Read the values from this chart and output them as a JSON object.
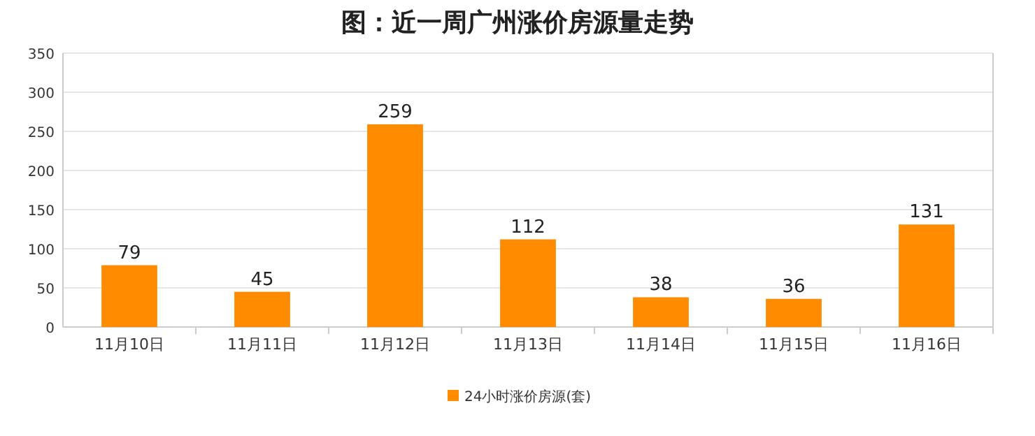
{
  "chart_data": {
    "type": "bar",
    "title": "图：近一周广州涨价房源量走势",
    "categories": [
      "11月10日",
      "11月11日",
      "11月12日",
      "11月13日",
      "11月14日",
      "11月15日",
      "11月16日"
    ],
    "series": [
      {
        "name": "24小时涨价房源(套)",
        "color": "#ff8c00",
        "values": [
          79,
          45,
          259,
          112,
          38,
          36,
          131
        ]
      }
    ],
    "ylim": [
      0,
      350
    ],
    "yticks": [
      0,
      50,
      100,
      150,
      200,
      250,
      300,
      350
    ],
    "grid": "y",
    "legend": "bottom",
    "data_labels": true
  }
}
